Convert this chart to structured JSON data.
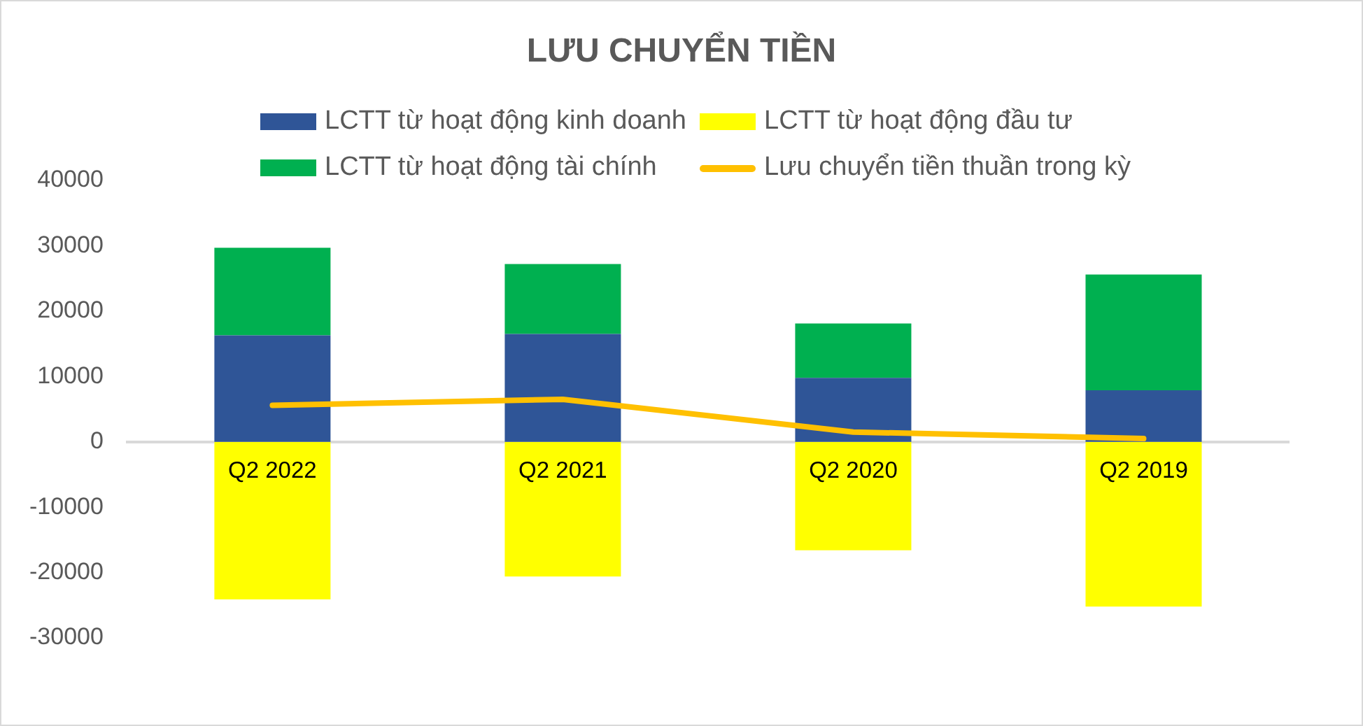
{
  "chart_data": {
    "type": "bar",
    "title": "LƯU CHUYỂN TIỀN",
    "categories": [
      "Q2 2022",
      "Q2 2021",
      "Q2 2020",
      "Q2 2019"
    ],
    "series": [
      {
        "name": "LCTT từ hoạt động kinh doanh",
        "color": "#2f5597",
        "values": [
          16300,
          16500,
          9800,
          7900
        ]
      },
      {
        "name": "LCTT từ hoạt động đầu tư",
        "color": "#ffff00",
        "values": [
          -24100,
          -20600,
          -16600,
          -25200
        ]
      },
      {
        "name": "LCTT từ hoạt động tài chính",
        "color": "#00b050",
        "values": [
          13400,
          10700,
          8300,
          17700
        ]
      },
      {
        "name": "Lưu chuyển tiền thuần trong kỳ",
        "type": "line",
        "color": "#ffc000",
        "values": [
          5600,
          6500,
          1500,
          500
        ]
      }
    ],
    "stacked": true,
    "ylim": [
      -30000,
      40000
    ],
    "yticks": [
      -30000,
      -20000,
      -10000,
      0,
      10000,
      20000,
      30000,
      40000
    ],
    "grid": false,
    "legend": "top",
    "marker": "none"
  }
}
